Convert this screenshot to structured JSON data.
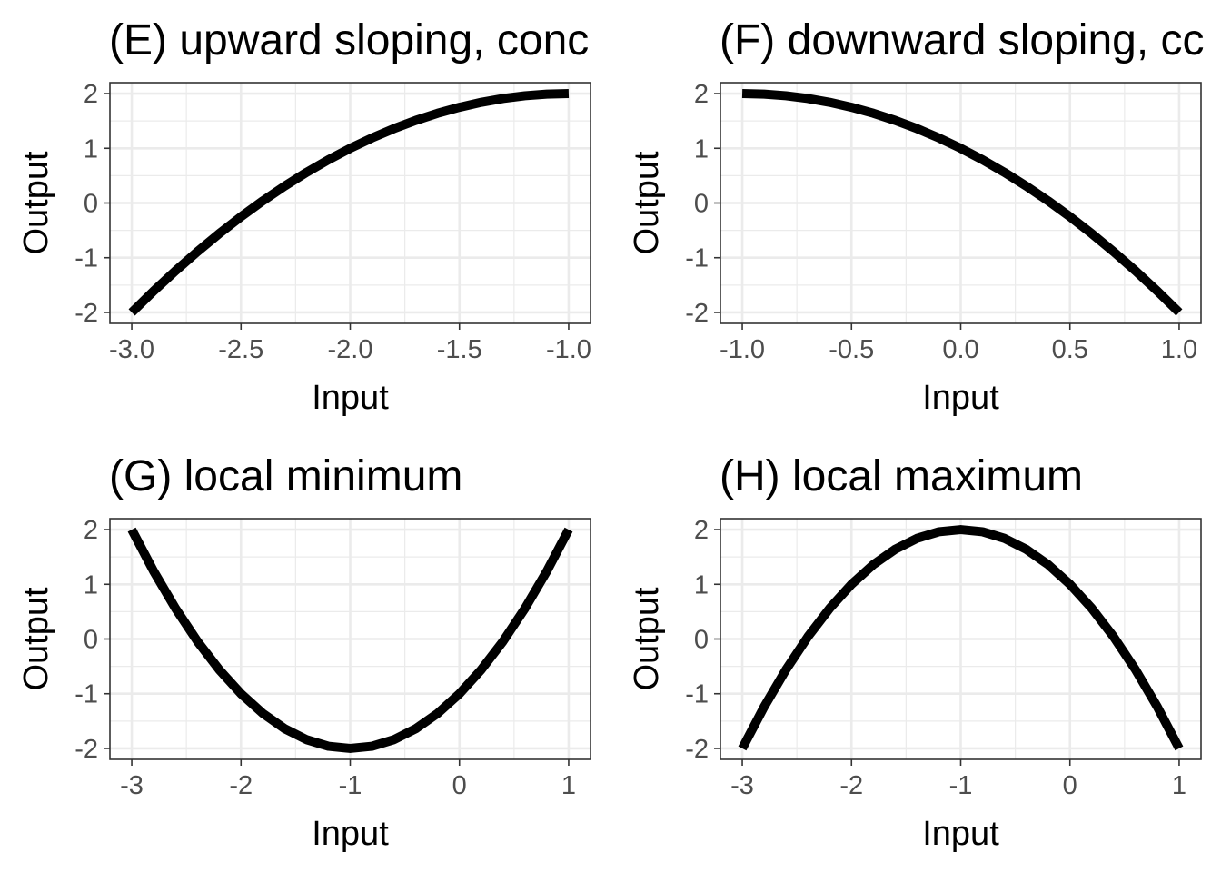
{
  "chart_data": [
    {
      "type": "line",
      "title": "(E) upward sloping, conc",
      "xlabel": "Input",
      "ylabel": "Output",
      "xlim": [
        -3.1,
        -0.9
      ],
      "ylim": [
        -2.2,
        2.2
      ],
      "x_ticks": [
        -3.0,
        -2.5,
        -2.0,
        -1.5,
        -1.0
      ],
      "x_tick_labels": [
        "-3.0",
        "-2.5",
        "-2.0",
        "-1.5",
        "-1.0"
      ],
      "y_ticks": [
        -2,
        -1,
        0,
        1,
        2
      ],
      "y_tick_labels": [
        "-2",
        "-1",
        "0",
        "1",
        "2"
      ],
      "grid": true,
      "series": [
        {
          "x": [
            -3.0,
            -2.9,
            -2.8,
            -2.7,
            -2.6,
            -2.5,
            -2.4,
            -2.3,
            -2.2,
            -2.1,
            -2.0,
            -1.9,
            -1.8,
            -1.7,
            -1.6,
            -1.5,
            -1.4,
            -1.3,
            -1.2,
            -1.1,
            -1.0
          ],
          "y": [
            -2.0,
            -1.61,
            -1.24,
            -0.89,
            -0.56,
            -0.25,
            0.04,
            0.31,
            0.56,
            0.79,
            1.0,
            1.19,
            1.36,
            1.51,
            1.64,
            1.75,
            1.84,
            1.91,
            1.96,
            1.99,
            2.0
          ]
        }
      ]
    },
    {
      "type": "line",
      "title": "(F) downward sloping, cc",
      "xlabel": "Input",
      "ylabel": "Output",
      "xlim": [
        -1.1,
        1.1
      ],
      "ylim": [
        -2.2,
        2.2
      ],
      "x_ticks": [
        -1.0,
        -0.5,
        0.0,
        0.5,
        1.0
      ],
      "x_tick_labels": [
        "-1.0",
        "-0.5",
        "0.0",
        "0.5",
        "1.0"
      ],
      "y_ticks": [
        -2,
        -1,
        0,
        1,
        2
      ],
      "y_tick_labels": [
        "-2",
        "-1",
        "0",
        "1",
        "2"
      ],
      "grid": true,
      "series": [
        {
          "x": [
            -1.0,
            -0.9,
            -0.8,
            -0.7,
            -0.6,
            -0.5,
            -0.4,
            -0.3,
            -0.2,
            -0.1,
            0.0,
            0.1,
            0.2,
            0.3,
            0.4,
            0.5,
            0.6,
            0.7,
            0.8,
            0.9,
            1.0
          ],
          "y": [
            2.0,
            1.99,
            1.96,
            1.91,
            1.84,
            1.75,
            1.64,
            1.51,
            1.36,
            1.19,
            1.0,
            0.79,
            0.56,
            0.31,
            0.04,
            -0.25,
            -0.56,
            -0.89,
            -1.24,
            -1.61,
            -2.0
          ]
        }
      ]
    },
    {
      "type": "line",
      "title": "(G) local minimum",
      "xlabel": "Input",
      "ylabel": "Output",
      "xlim": [
        -3.2,
        1.2
      ],
      "ylim": [
        -2.2,
        2.2
      ],
      "x_ticks": [
        -3,
        -2,
        -1,
        0,
        1
      ],
      "x_tick_labels": [
        "-3",
        "-2",
        "-1",
        "0",
        "1"
      ],
      "y_ticks": [
        -2,
        -1,
        0,
        1,
        2
      ],
      "y_tick_labels": [
        "-2",
        "-1",
        "0",
        "1",
        "2"
      ],
      "grid": true,
      "series": [
        {
          "x": [
            -3.0,
            -2.8,
            -2.6,
            -2.4,
            -2.2,
            -2.0,
            -1.8,
            -1.6,
            -1.4,
            -1.2,
            -1.0,
            -0.8,
            -0.6,
            -0.4,
            -0.2,
            0.0,
            0.2,
            0.4,
            0.6,
            0.8,
            1.0
          ],
          "y": [
            2.0,
            1.24,
            0.56,
            -0.04,
            -0.56,
            -1.0,
            -1.36,
            -1.64,
            -1.84,
            -1.96,
            -2.0,
            -1.96,
            -1.84,
            -1.64,
            -1.36,
            -1.0,
            -0.56,
            -0.04,
            0.56,
            1.24,
            2.0
          ]
        }
      ]
    },
    {
      "type": "line",
      "title": "(H) local maximum",
      "xlabel": "Input",
      "ylabel": "Output",
      "xlim": [
        -3.2,
        1.2
      ],
      "ylim": [
        -2.2,
        2.2
      ],
      "x_ticks": [
        -3,
        -2,
        -1,
        0,
        1
      ],
      "x_tick_labels": [
        "-3",
        "-2",
        "-1",
        "0",
        "1"
      ],
      "y_ticks": [
        -2,
        -1,
        0,
        1,
        2
      ],
      "y_tick_labels": [
        "-2",
        "-1",
        "0",
        "1",
        "2"
      ],
      "grid": true,
      "series": [
        {
          "x": [
            -3.0,
            -2.8,
            -2.6,
            -2.4,
            -2.2,
            -2.0,
            -1.8,
            -1.6,
            -1.4,
            -1.2,
            -1.0,
            -0.8,
            -0.6,
            -0.4,
            -0.2,
            0.0,
            0.2,
            0.4,
            0.6,
            0.8,
            1.0
          ],
          "y": [
            -2.0,
            -1.24,
            -0.56,
            0.04,
            0.56,
            1.0,
            1.36,
            1.64,
            1.84,
            1.96,
            2.0,
            1.96,
            1.84,
            1.64,
            1.36,
            1.0,
            0.56,
            0.04,
            -0.56,
            -1.24,
            -2.0
          ]
        }
      ]
    }
  ]
}
